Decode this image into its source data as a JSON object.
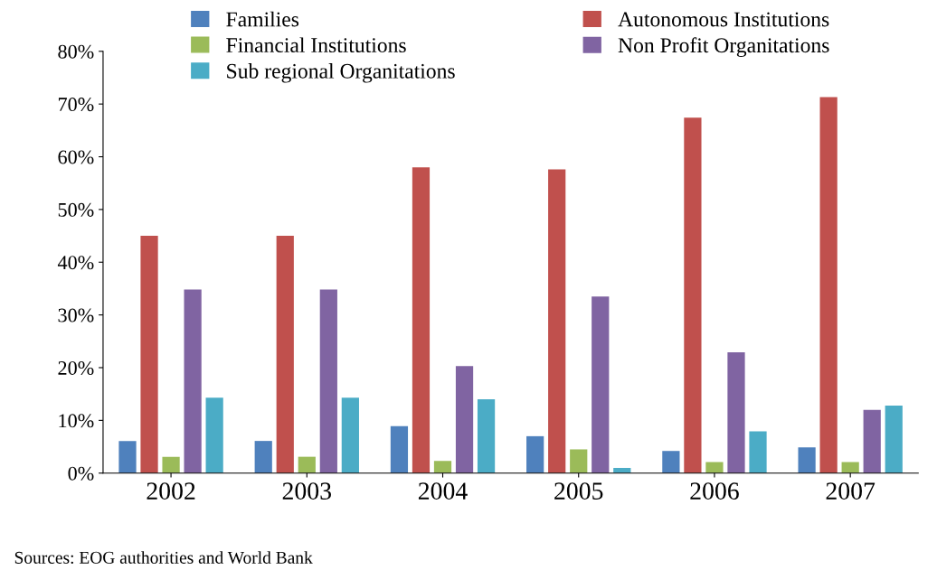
{
  "chart_data": {
    "type": "bar",
    "categories": [
      "2002",
      "2003",
      "2004",
      "2005",
      "2006",
      "2007"
    ],
    "series": [
      {
        "name": "Families",
        "color": "#4f81bd",
        "values": [
          6.1,
          6.1,
          8.9,
          7,
          4.2,
          4.9
        ]
      },
      {
        "name": "Autonomous Institutions",
        "color": "#c0504d",
        "values": [
          45,
          45,
          58,
          57.6,
          67.4,
          71.3
        ]
      },
      {
        "name": "Financial Institutions",
        "color": "#9bbb59",
        "values": [
          3.1,
          3.1,
          2.3,
          4.5,
          2.1,
          2.1
        ]
      },
      {
        "name": "Non Profit Organitations",
        "color": "#8064a2",
        "values": [
          34.8,
          34.8,
          20.3,
          33.5,
          22.9,
          12
        ]
      },
      {
        "name": "Sub regional Organitations",
        "color": "#4bacc6",
        "values": [
          14.3,
          14.3,
          14,
          1,
          7.9,
          12.8
        ]
      }
    ],
    "ylim": [
      0,
      80
    ],
    "yticks": [
      {
        "value": 0,
        "label": "0%"
      },
      {
        "value": 10,
        "label": "10%"
      },
      {
        "value": 20,
        "label": "20%"
      },
      {
        "value": 30,
        "label": "30%"
      },
      {
        "value": 40,
        "label": "40%"
      },
      {
        "value": 50,
        "label": "50%"
      },
      {
        "value": 60,
        "label": "60%"
      },
      {
        "value": 70,
        "label": "70%"
      },
      {
        "value": 80,
        "label": "80%"
      }
    ],
    "grid": false,
    "legend": "top",
    "annotations": [
      "Sources: EOG authorities and World Bank"
    ]
  }
}
